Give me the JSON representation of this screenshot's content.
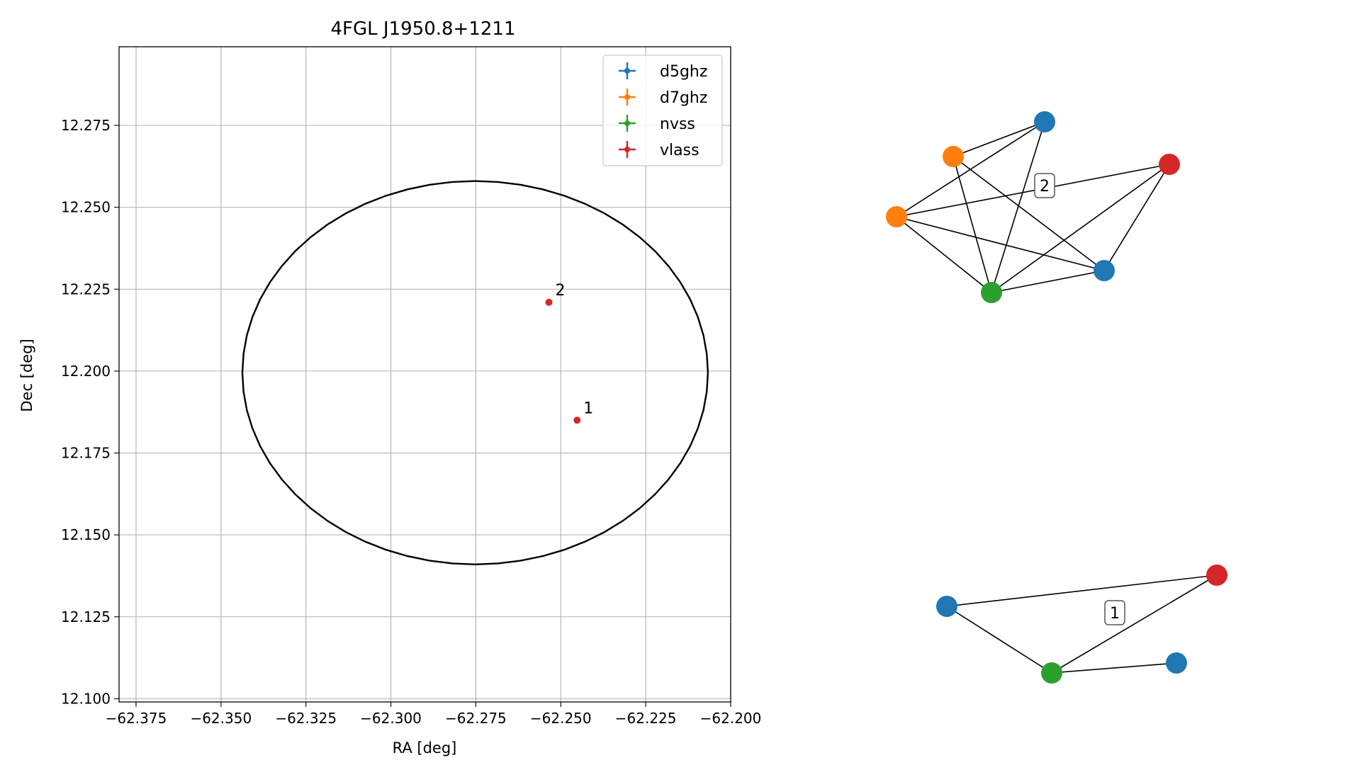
{
  "chart_data": {
    "type": "scatter",
    "title": "4FGL J1950.8+1211",
    "xlabel": "RA [deg]",
    "ylabel": "Dec [deg]",
    "xlim": [
      -62.38,
      -62.2
    ],
    "ylim": [
      12.099,
      12.299
    ],
    "x_ticks": [
      -62.375,
      -62.35,
      -62.325,
      -62.3,
      -62.275,
      -62.25,
      -62.225,
      -62.2
    ],
    "x_tick_labels": [
      "−62.375",
      "−62.350",
      "−62.325",
      "−62.300",
      "−62.275",
      "−62.250",
      "−62.225",
      "−62.200"
    ],
    "y_ticks": [
      12.1,
      12.125,
      12.15,
      12.175,
      12.2,
      12.225,
      12.25,
      12.275
    ],
    "y_tick_labels": [
      "12.100",
      "12.125",
      "12.150",
      "12.175",
      "12.200",
      "12.225",
      "12.250",
      "12.275"
    ],
    "grid": true,
    "legend": {
      "position": "top-right",
      "entries": [
        {
          "label": "d5ghz",
          "color": "#1f77b4"
        },
        {
          "label": "d7ghz",
          "color": "#ff7f0e"
        },
        {
          "label": "nvss",
          "color": "#2ca02c"
        },
        {
          "label": "vlass",
          "color": "#d62728"
        }
      ]
    },
    "ellipse": {
      "center": [
        -62.2752,
        12.1995
      ],
      "ra_radius": 0.0685,
      "dec_radius": 0.0585,
      "color": "#000000"
    },
    "points": [
      {
        "label": "2",
        "x": -62.2535,
        "y": 12.221,
        "color": "#d62728"
      },
      {
        "label": "1",
        "x": -62.2452,
        "y": 12.185,
        "color": "#d62728"
      }
    ]
  },
  "graphs": [
    {
      "label": "2",
      "nodes": [
        {
          "id": "a",
          "color": "#1f77b4"
        },
        {
          "id": "b",
          "color": "#ff7f0e"
        },
        {
          "id": "c",
          "color": "#ff7f0e"
        },
        {
          "id": "d",
          "color": "#d62728"
        },
        {
          "id": "e",
          "color": "#1f77b4"
        },
        {
          "id": "f",
          "color": "#2ca02c"
        }
      ],
      "edges": [
        [
          "a",
          "b"
        ],
        [
          "a",
          "c"
        ],
        [
          "a",
          "f"
        ],
        [
          "b",
          "f"
        ],
        [
          "b",
          "e"
        ],
        [
          "c",
          "d"
        ],
        [
          "c",
          "e"
        ],
        [
          "c",
          "f"
        ],
        [
          "d",
          "f"
        ],
        [
          "d",
          "e"
        ],
        [
          "e",
          "f"
        ]
      ]
    },
    {
      "label": "1",
      "nodes": [
        {
          "id": "g",
          "color": "#1f77b4"
        },
        {
          "id": "h",
          "color": "#d62728"
        },
        {
          "id": "i",
          "color": "#2ca02c"
        },
        {
          "id": "j",
          "color": "#1f77b4"
        }
      ],
      "edges": [
        [
          "g",
          "h"
        ],
        [
          "g",
          "i"
        ],
        [
          "i",
          "h"
        ],
        [
          "i",
          "j"
        ]
      ]
    }
  ]
}
